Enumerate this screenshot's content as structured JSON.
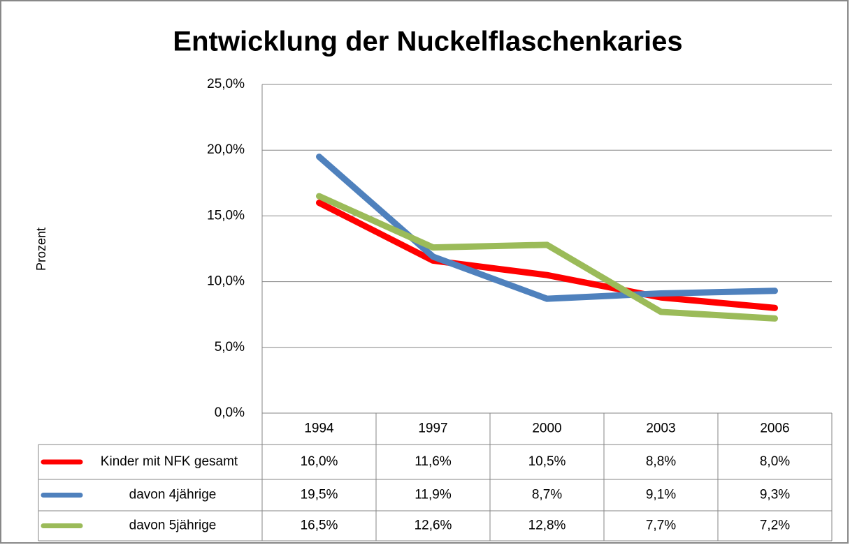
{
  "chart_data": {
    "type": "line",
    "title": "Entwicklung der Nuckelflaschenkaries",
    "y_label": "Prozent",
    "categories": [
      "1994",
      "1997",
      "2000",
      "2003",
      "2006"
    ],
    "series": [
      {
        "name": "Kinder mit NFK gesamt",
        "color": "#ff0000",
        "values": [
          16.0,
          11.6,
          10.5,
          8.8,
          8.0
        ],
        "value_labels": [
          "16,0%",
          "11,6%",
          "10,5%",
          "8,8%",
          "8,0%"
        ]
      },
      {
        "name": "davon 4jährige",
        "color": "#4f81bd",
        "values": [
          19.5,
          11.9,
          8.7,
          9.1,
          9.3
        ],
        "value_labels": [
          "19,5%",
          "11,9%",
          "8,7%",
          "9,1%",
          "9,3%"
        ]
      },
      {
        "name": "davon 5jährige",
        "color": "#9bbb59",
        "values": [
          16.5,
          12.6,
          12.8,
          7.7,
          7.2
        ],
        "value_labels": [
          "16,5%",
          "12,6%",
          "12,8%",
          "7,7%",
          "7,2%"
        ]
      }
    ],
    "ylim": [
      0,
      25
    ],
    "yticks": [
      {
        "value": 0,
        "label": "0,0%"
      },
      {
        "value": 5,
        "label": "5,0%"
      },
      {
        "value": 10,
        "label": "10,0%"
      },
      {
        "value": 15,
        "label": "15,0%"
      },
      {
        "value": 20,
        "label": "20,0%"
      },
      {
        "value": 25,
        "label": "25,0%"
      }
    ],
    "grid": true
  }
}
